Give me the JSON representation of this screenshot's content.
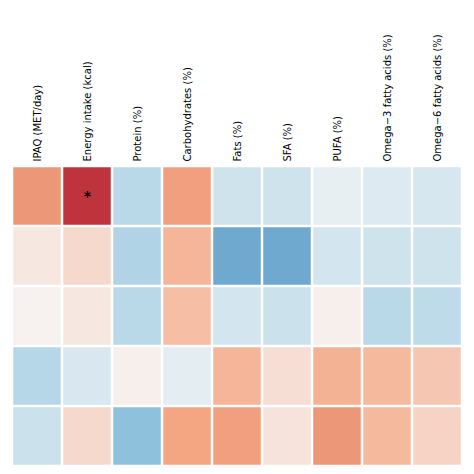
{
  "chart_data": {
    "type": "heatmap",
    "categories": [
      "IPAQ (MET/day)",
      "Energy intake (kcal)",
      "Protein (%)",
      "Carbohydrates (%)",
      "Fats (%)",
      "SFA (%)",
      "PUFA (%)",
      "Omega−3 fatty acids (%)",
      "Omega−6 fatty acids (%)"
    ],
    "matrix": [
      [
        0.55,
        0.9,
        -0.3,
        0.52,
        -0.2,
        -0.2,
        -0.08,
        -0.13,
        -0.16
      ],
      [
        0.1,
        0.18,
        -0.35,
        0.4,
        -0.65,
        -0.65,
        -0.18,
        -0.2,
        -0.2
      ],
      [
        0.03,
        0.1,
        -0.3,
        0.35,
        -0.18,
        -0.22,
        0.05,
        -0.3,
        -0.28
      ],
      [
        -0.32,
        -0.15,
        0.05,
        -0.1,
        0.4,
        0.15,
        0.42,
        0.38,
        0.3
      ],
      [
        -0.22,
        0.18,
        -0.52,
        0.5,
        0.52,
        0.12,
        0.55,
        0.38,
        0.22
      ]
    ],
    "zlim": [
      -1.0,
      1.0
    ],
    "colors": [
      "#2166ac",
      "#92c5de",
      "#f7f7f7",
      "#f4a582",
      "#b2182b"
    ],
    "annotations": [
      {
        "row": 0,
        "col": 1,
        "text": "*"
      }
    ],
    "tick_labels": "x"
  }
}
